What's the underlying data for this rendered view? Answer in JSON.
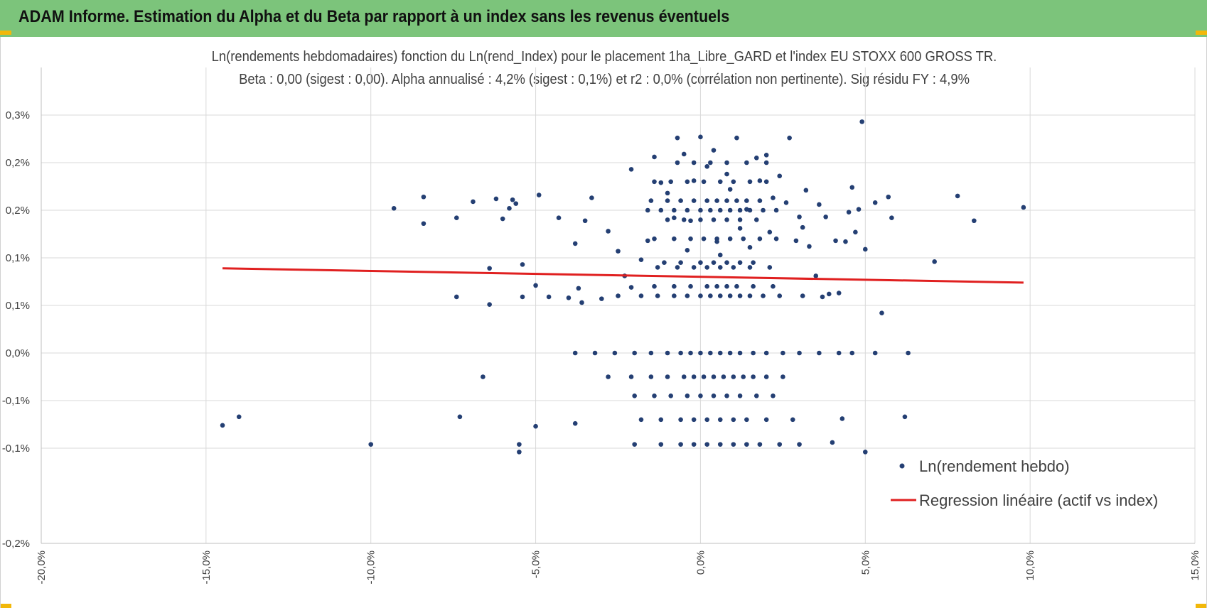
{
  "header": {
    "title": "ADAM Informe. Estimation du Alpha et du Beta par rapport à un index sans les revenus éventuels",
    "background_color": "#7cc47b",
    "corner_color": "#f2b80a"
  },
  "chart_data": {
    "type": "scatter",
    "title_line1": "Ln(rendements hebdomadaires) fonction du Ln(rend_Index) pour le placement 1ha_Libre_GARD et l'index EU STOXX 600 GROSS TR.",
    "title_line2": "Beta : 0,00 (sigest : 0,00).  Alpha annualisé : 4,2% (sigest : 0,1%) et r2 : 0,0% (corrélation non pertinente). Sig résidu FY : 4,9%",
    "xlim": [
      -20,
      15
    ],
    "ylim": [
      -0.2,
      0.3
    ],
    "x_ticks": [
      -20,
      -15,
      -10,
      -5,
      0,
      5,
      10,
      15
    ],
    "x_tick_labels": [
      "-20,0%",
      "-15,0%",
      "-10,0%",
      "-5,0%",
      "0,0%",
      "5,0%",
      "10,0%",
      "15,0%"
    ],
    "y_ticks": [
      -0.2,
      -0.15,
      -0.1,
      -0.05,
      0,
      0.05,
      0.1,
      0.15,
      0.2,
      0.25,
      0.3
    ],
    "y_tick_labels": [
      "-0,2%",
      "-0,1%",
      "-0,1%",
      "0,0%",
      "0,1%",
      "0,1%",
      "0,2%",
      "0,2%",
      "0,3%"
    ],
    "y_labeled_ticks": [
      -0.2,
      -0.1,
      -0.05,
      0,
      0.05,
      0.1,
      0.15,
      0.2,
      0.25
    ],
    "series": [
      {
        "name": "Ln(rendement hebdo)",
        "kind": "scatter",
        "color": "#243f73",
        "points": [
          [
            -14.5,
            -0.076
          ],
          [
            -14.0,
            -0.067
          ],
          [
            -10.0,
            -0.096
          ],
          [
            -9.3,
            0.152
          ],
          [
            -8.4,
            0.164
          ],
          [
            -8.4,
            0.136
          ],
          [
            -7.4,
            0.059
          ],
          [
            -7.4,
            0.142
          ],
          [
            -7.3,
            -0.067
          ],
          [
            -6.9,
            0.159
          ],
          [
            -6.6,
            -0.025
          ],
          [
            -6.4,
            0.051
          ],
          [
            -6.4,
            0.089
          ],
          [
            -6.2,
            0.162
          ],
          [
            -6.0,
            0.141
          ],
          [
            -5.8,
            0.152
          ],
          [
            -5.7,
            0.161
          ],
          [
            -5.6,
            0.157
          ],
          [
            -5.5,
            -0.096
          ],
          [
            -5.5,
            -0.104
          ],
          [
            -5.4,
            0.093
          ],
          [
            -5.4,
            0.059
          ],
          [
            -5.0,
            0.071
          ],
          [
            -5.0,
            -0.077
          ],
          [
            -4.9,
            0.166
          ],
          [
            -4.6,
            0.059
          ],
          [
            -4.3,
            0.142
          ],
          [
            -4.0,
            0.058
          ],
          [
            -3.8,
            0.115
          ],
          [
            -3.8,
            -0.074
          ],
          [
            -3.7,
            0.068
          ],
          [
            -3.6,
            0.053
          ],
          [
            -3.5,
            0.139
          ],
          [
            -3.3,
            0.163
          ],
          [
            -3.0,
            0.057
          ],
          [
            -2.8,
            0.128
          ],
          [
            -2.5,
            0.107
          ],
          [
            -2.3,
            0.081
          ],
          [
            -2.1,
            0.069
          ],
          [
            -2.1,
            0.193
          ],
          [
            -1.8,
            0.098
          ],
          [
            -1.6,
            0.118
          ],
          [
            -1.4,
            0.206
          ],
          [
            -1.2,
            0.179
          ],
          [
            -1.0,
            0.168
          ],
          [
            -0.8,
            0.142
          ],
          [
            -0.7,
            0.226
          ],
          [
            -0.5,
            0.209
          ],
          [
            -0.4,
            0.108
          ],
          [
            -0.3,
            0.139
          ],
          [
            -0.2,
            0.181
          ],
          [
            0.0,
            0.227
          ],
          [
            0.2,
            0.196
          ],
          [
            0.4,
            0.213
          ],
          [
            0.5,
            0.117
          ],
          [
            0.6,
            0.103
          ],
          [
            0.8,
            0.188
          ],
          [
            0.9,
            0.172
          ],
          [
            1.1,
            0.226
          ],
          [
            1.2,
            0.131
          ],
          [
            1.4,
            0.151
          ],
          [
            1.5,
            0.111
          ],
          [
            1.7,
            0.205
          ],
          [
            1.8,
            0.181
          ],
          [
            2.0,
            0.208
          ],
          [
            2.1,
            0.127
          ],
          [
            2.2,
            0.163
          ],
          [
            2.4,
            0.186
          ],
          [
            2.6,
            0.158
          ],
          [
            2.7,
            0.226
          ],
          [
            2.9,
            0.118
          ],
          [
            3.0,
            0.143
          ],
          [
            3.1,
            0.132
          ],
          [
            3.2,
            0.171
          ],
          [
            3.3,
            0.112
          ],
          [
            3.5,
            0.081
          ],
          [
            3.6,
            0.156
          ],
          [
            3.7,
            0.059
          ],
          [
            3.8,
            0.143
          ],
          [
            3.9,
            0.062
          ],
          [
            4.0,
            -0.094
          ],
          [
            4.1,
            0.118
          ],
          [
            4.2,
            0.063
          ],
          [
            4.3,
            -0.069
          ],
          [
            4.4,
            0.117
          ],
          [
            4.5,
            0.148
          ],
          [
            4.6,
            0.174
          ],
          [
            4.7,
            0.127
          ],
          [
            4.8,
            0.151
          ],
          [
            4.9,
            0.243
          ],
          [
            5.0,
            0.109
          ],
          [
            5.0,
            -0.104
          ],
          [
            5.3,
            0.158
          ],
          [
            5.5,
            0.042
          ],
          [
            5.7,
            0.164
          ],
          [
            5.8,
            0.142
          ],
          [
            6.2,
            -0.067
          ],
          [
            6.3,
            0.0
          ],
          [
            7.1,
            0.096
          ],
          [
            7.8,
            0.165
          ],
          [
            8.3,
            0.139
          ],
          [
            9.8,
            0.153
          ],
          [
            -0.6,
            0.0
          ],
          [
            -0.3,
            0.0
          ],
          [
            0.0,
            0.0
          ],
          [
            0.3,
            0.0
          ],
          [
            0.6,
            0.0
          ],
          [
            0.9,
            0.0
          ],
          [
            1.2,
            0.0
          ],
          [
            -1.0,
            0.0
          ],
          [
            1.6,
            0.0
          ],
          [
            -1.5,
            0.0
          ],
          [
            2.0,
            0.0
          ],
          [
            -2.0,
            0.0
          ],
          [
            2.5,
            0.0
          ],
          [
            -2.6,
            0.0
          ],
          [
            3.0,
            0.0
          ],
          [
            -3.2,
            0.0
          ],
          [
            3.6,
            0.0
          ],
          [
            -3.8,
            0.0
          ],
          [
            4.2,
            0.0
          ],
          [
            4.6,
            0.0
          ],
          [
            5.3,
            0.0
          ],
          [
            -0.8,
            0.06
          ],
          [
            -0.4,
            0.06
          ],
          [
            0.0,
            0.06
          ],
          [
            0.3,
            0.06
          ],
          [
            0.6,
            0.06
          ],
          [
            0.9,
            0.06
          ],
          [
            1.2,
            0.06
          ],
          [
            1.5,
            0.06
          ],
          [
            -1.3,
            0.06
          ],
          [
            1.9,
            0.06
          ],
          [
            -1.8,
            0.06
          ],
          [
            2.4,
            0.06
          ],
          [
            -2.5,
            0.06
          ],
          [
            3.1,
            0.06
          ],
          [
            -0.8,
            0.07
          ],
          [
            -0.3,
            0.07
          ],
          [
            0.2,
            0.07
          ],
          [
            0.5,
            0.07
          ],
          [
            0.8,
            0.07
          ],
          [
            1.1,
            0.07
          ],
          [
            1.6,
            0.07
          ],
          [
            -1.4,
            0.07
          ],
          [
            2.2,
            0.07
          ],
          [
            -0.7,
            0.09
          ],
          [
            -0.2,
            0.09
          ],
          [
            0.2,
            0.09
          ],
          [
            0.6,
            0.09
          ],
          [
            1.0,
            0.09
          ],
          [
            1.5,
            0.09
          ],
          [
            -1.3,
            0.09
          ],
          [
            2.1,
            0.09
          ],
          [
            -0.6,
            0.095
          ],
          [
            0.0,
            0.095
          ],
          [
            0.4,
            0.095
          ],
          [
            0.8,
            0.095
          ],
          [
            1.2,
            0.095
          ],
          [
            1.6,
            0.095
          ],
          [
            -1.1,
            0.095
          ],
          [
            -0.8,
            0.12
          ],
          [
            -0.3,
            0.12
          ],
          [
            0.1,
            0.12
          ],
          [
            0.5,
            0.12
          ],
          [
            0.9,
            0.12
          ],
          [
            1.3,
            0.12
          ],
          [
            -1.4,
            0.12
          ],
          [
            1.8,
            0.12
          ],
          [
            2.3,
            0.12
          ],
          [
            -0.5,
            0.14
          ],
          [
            0.0,
            0.14
          ],
          [
            0.4,
            0.14
          ],
          [
            0.8,
            0.14
          ],
          [
            1.2,
            0.14
          ],
          [
            -1.0,
            0.14
          ],
          [
            1.7,
            0.14
          ],
          [
            -0.8,
            0.15
          ],
          [
            -0.4,
            0.15
          ],
          [
            0.0,
            0.15
          ],
          [
            0.3,
            0.15
          ],
          [
            0.6,
            0.15
          ],
          [
            0.9,
            0.15
          ],
          [
            1.2,
            0.15
          ],
          [
            1.5,
            0.15
          ],
          [
            -1.2,
            0.15
          ],
          [
            1.9,
            0.15
          ],
          [
            -1.6,
            0.15
          ],
          [
            2.3,
            0.15
          ],
          [
            -0.6,
            0.16
          ],
          [
            -0.2,
            0.16
          ],
          [
            0.2,
            0.16
          ],
          [
            0.5,
            0.16
          ],
          [
            0.8,
            0.16
          ],
          [
            1.1,
            0.16
          ],
          [
            1.4,
            0.16
          ],
          [
            -1.0,
            0.16
          ],
          [
            1.8,
            0.16
          ],
          [
            -1.5,
            0.16
          ],
          [
            -0.4,
            0.18
          ],
          [
            0.1,
            0.18
          ],
          [
            0.6,
            0.18
          ],
          [
            1.0,
            0.18
          ],
          [
            -0.9,
            0.18
          ],
          [
            1.5,
            0.18
          ],
          [
            -1.4,
            0.18
          ],
          [
            2.0,
            0.18
          ],
          [
            -0.2,
            0.2
          ],
          [
            0.3,
            0.2
          ],
          [
            0.8,
            0.2
          ],
          [
            -0.7,
            0.2
          ],
          [
            1.4,
            0.2
          ],
          [
            2.0,
            0.2
          ],
          [
            -0.5,
            -0.025
          ],
          [
            -0.2,
            -0.025
          ],
          [
            0.1,
            -0.025
          ],
          [
            0.4,
            -0.025
          ],
          [
            0.7,
            -0.025
          ],
          [
            1.0,
            -0.025
          ],
          [
            1.3,
            -0.025
          ],
          [
            1.6,
            -0.025
          ],
          [
            -1.0,
            -0.025
          ],
          [
            2.0,
            -0.025
          ],
          [
            -1.5,
            -0.025
          ],
          [
            2.5,
            -0.025
          ],
          [
            -2.1,
            -0.025
          ],
          [
            -2.8,
            -0.025
          ],
          [
            -0.4,
            -0.045
          ],
          [
            0.0,
            -0.045
          ],
          [
            0.4,
            -0.045
          ],
          [
            0.8,
            -0.045
          ],
          [
            1.2,
            -0.045
          ],
          [
            -0.9,
            -0.045
          ],
          [
            1.7,
            -0.045
          ],
          [
            -1.4,
            -0.045
          ],
          [
            2.2,
            -0.045
          ],
          [
            -2.0,
            -0.045
          ],
          [
            -0.6,
            -0.07
          ],
          [
            -0.2,
            -0.07
          ],
          [
            0.2,
            -0.07
          ],
          [
            0.6,
            -0.07
          ],
          [
            1.0,
            -0.07
          ],
          [
            1.4,
            -0.07
          ],
          [
            -1.2,
            -0.07
          ],
          [
            2.0,
            -0.07
          ],
          [
            -1.8,
            -0.07
          ],
          [
            2.8,
            -0.07
          ],
          [
            -0.6,
            -0.096
          ],
          [
            -0.2,
            -0.096
          ],
          [
            0.2,
            -0.096
          ],
          [
            0.6,
            -0.096
          ],
          [
            1.0,
            -0.096
          ],
          [
            1.4,
            -0.096
          ],
          [
            -1.2,
            -0.096
          ],
          [
            1.8,
            -0.096
          ],
          [
            -2.0,
            -0.096
          ],
          [
            2.4,
            -0.096
          ],
          [
            3.0,
            -0.096
          ]
        ]
      },
      {
        "name": "Regression linéaire (actif vs index)",
        "kind": "line",
        "color": "#e02020",
        "x": [
          -14.5,
          9.8
        ],
        "y": [
          0.089,
          0.074
        ]
      }
    ],
    "legend_position": "bottom-right"
  }
}
